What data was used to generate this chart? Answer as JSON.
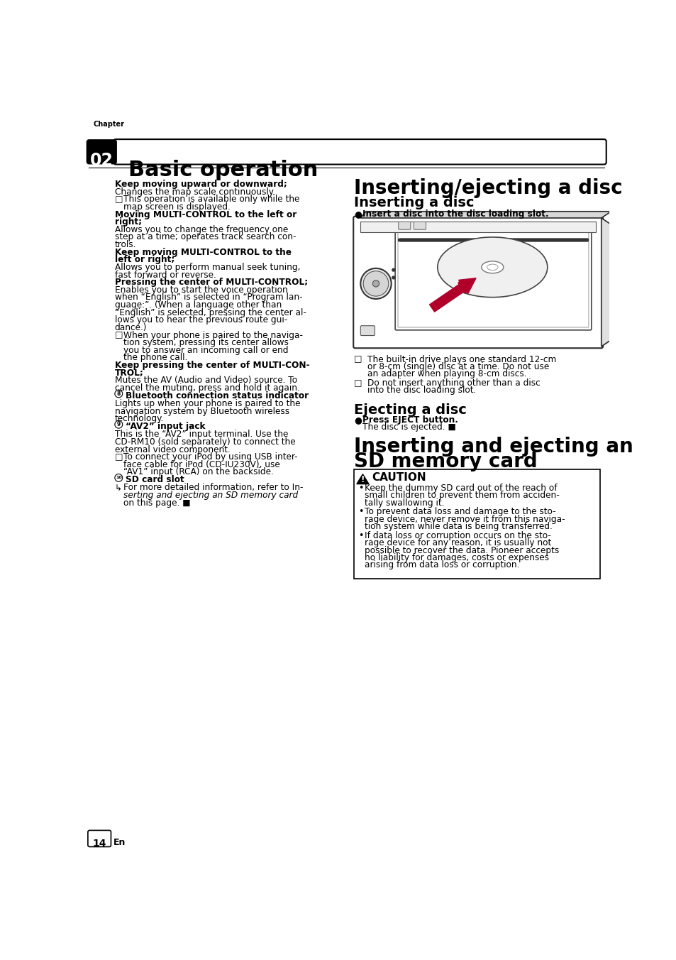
{
  "bg_color": "#ffffff",
  "chapter_label": "Chapter",
  "chapter_num": "02",
  "header_title": "Basic operation",
  "page_num": "14",
  "page_lang": "En",
  "left_content_lines": [
    {
      "type": "bold_normal",
      "bold": "Keep moving upward or downward",
      "normal": ";",
      "indent": 0
    },
    {
      "type": "normal",
      "text": "Changes the map scale continuously.",
      "indent": 0
    },
    {
      "type": "checkbox",
      "text": "This operation is available only while the\nmap screen is displayed.",
      "indent": 0
    },
    {
      "type": "bold_normal",
      "bold": "Moving MULTI-CONTROL to the left or\nright",
      "normal": ";",
      "indent": 0
    },
    {
      "type": "normal",
      "text": "Allows you to change the frequency one\nstep at a time; operates track search con-\ntrols.",
      "indent": 0
    },
    {
      "type": "bold_normal",
      "bold": "Keep moving MULTI-CONTROL to the\nleft or right",
      "normal": ";",
      "indent": 0
    },
    {
      "type": "normal",
      "text": "Allows you to perform manual seek tuning,\nfast forward or reverse.",
      "indent": 0
    },
    {
      "type": "bold_normal",
      "bold": "Pressing the center of MULTI-CONTROL",
      "normal": ";",
      "indent": 0
    },
    {
      "type": "mixed",
      "parts": [
        [
          "n",
          "Enables you to start the voice operation\nwhen “"
        ],
        [
          "b",
          "English"
        ],
        [
          "n",
          "” is selected in “"
        ],
        [
          "b",
          "Program lan-\nguage:"
        ],
        [
          "n",
          "”. (When a language other than\n“"
        ],
        [
          "b",
          "English"
        ],
        [
          "n",
          "” is selected, pressing the center al-\nlows you to hear the previous route gui-\ndance.)"
        ]
      ],
      "indent": 0
    },
    {
      "type": "checkbox",
      "text": "When your phone is paired to the naviga-\ntion system, pressing its center allows\nyou to answer an incoming call or end\nthe phone call.",
      "indent": 0
    },
    {
      "type": "bold_normal",
      "bold": "Keep pressing the center of MULTI-CON-\nTROL",
      "normal": ";",
      "indent": 0
    },
    {
      "type": "normal",
      "text": "Mutes the AV (Audio and Video) source. To\ncancel the muting, press and hold it again.",
      "indent": 0
    },
    {
      "type": "circled",
      "num": "8",
      "bold": "Bluetooth connection status indicator",
      "indent": 0
    },
    {
      "type": "normal",
      "text": "Lights up when your phone is paired to the\nnavigation system by Bluetooth wireless\ntechnology.",
      "indent": 0
    },
    {
      "type": "circled",
      "num": "9",
      "bold": "“AV2” input jack",
      "indent": 0
    },
    {
      "type": "mixed",
      "parts": [
        [
          "n",
          "This is the “"
        ],
        [
          "b",
          "AV2"
        ],
        [
          "n",
          "” input terminal. Use the\nCD-RM10 (sold separately) to connect the\nexternal video component."
        ]
      ],
      "indent": 0
    },
    {
      "type": "checkbox",
      "text": "To connect your iPod by using USB inter-\nface cable for iPod (CD-IU230V), use\n“AV1” input (RCA) on the backside.",
      "indent": 0
    },
    {
      "type": "circled",
      "num": "10",
      "bold": "SD card slot",
      "indent": 0
    },
    {
      "type": "refer",
      "text": "For more detailed information, refer to In-\nserting and ejecting an SD memory card\non this page.",
      "indent": 0
    }
  ],
  "right_section1_title": "Inserting/ejecting a disc",
  "right_section1_sub1": "Inserting a disc",
  "right_bullet1": "Insert a disc into the disc loading slot.",
  "right_note1_lines": [
    "The built-in drive plays one standard 12-cm",
    "or 8-cm (single) disc at a time. Do not use",
    "an adapter when playing 8-cm discs."
  ],
  "right_note2_lines": [
    "Do not insert anything other than a disc",
    "into the disc loading slot."
  ],
  "right_section1_sub2": "Ejecting a disc",
  "right_bullet2_bold": "Press EJECT button.",
  "right_bullet2_normal": "The disc is ejected.",
  "right_section2_title_line1": "Inserting and ejecting an",
  "right_section2_title_line2": "SD memory card",
  "caution_title": "CAUTION",
  "caution_bullets": [
    "Keep the dummy SD card out of the reach of\nsmall children to prevent them from acciden-\ntally swallowing it.",
    "To prevent data loss and damage to the sto-\nrage device, never remove it from this naviga-\ntion system while data is being transferred.",
    "If data loss or corruption occurs on the sto-\nrage device for any reason, it is usually not\npossible to recover the data. Pioneer accepts\nno liability for damages, costs or expenses\narising from data loss or corruption."
  ]
}
